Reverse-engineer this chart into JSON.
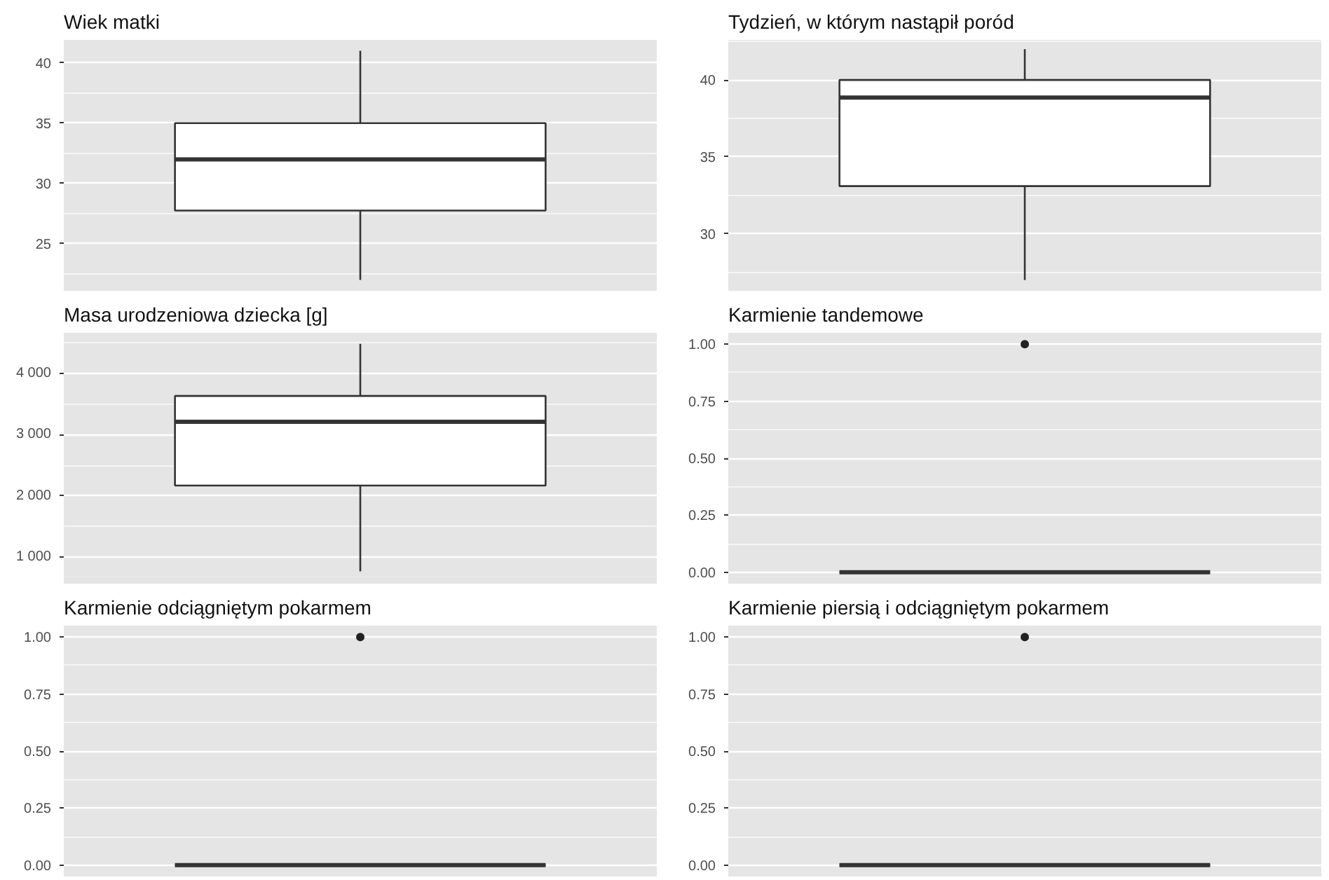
{
  "chart_data": [
    {
      "type": "box",
      "title": "Wiek matki",
      "categories": [
        null
      ],
      "boxes": [
        {
          "low": 22,
          "q1": 27.75,
          "median": 32,
          "q3": 35,
          "high": 41
        }
      ],
      "ylim": [
        21.1,
        41.9
      ],
      "yticks": [
        25,
        30,
        35,
        40
      ],
      "grid": "y",
      "tick_labels": "y"
    },
    {
      "type": "box",
      "title": "Tydzień, w którym nastąpił poród",
      "categories": [
        null
      ],
      "boxes": [
        {
          "low": 27,
          "q1": 33.1,
          "median": 38.85,
          "q3": 40,
          "high": 42
        }
      ],
      "ylim": [
        26.3,
        42.6
      ],
      "yticks": [
        30,
        35,
        40
      ],
      "grid": "y",
      "tick_labels": "y"
    },
    {
      "type": "box",
      "title": "Masa urodzeniowa dziecka [g]",
      "categories": [
        null
      ],
      "boxes": [
        {
          "low": 770,
          "q1": 2170,
          "median": 3210,
          "q3": 3630,
          "high": 4480
        }
      ],
      "ylim": [
        570,
        4660
      ],
      "yticks": [
        {
          "value": 1000,
          "label": "1 000"
        },
        {
          "value": 2000,
          "label": "2 000"
        },
        {
          "value": 3000,
          "label": "3 000"
        },
        {
          "value": 4000,
          "label": "4 000"
        }
      ],
      "grid": "y",
      "tick_labels": "y"
    },
    {
      "type": "box",
      "title": "Karmienie tandemowe",
      "categories": [
        null
      ],
      "boxes": [
        {
          "low": 0,
          "q1": 0,
          "median": 0,
          "q3": 0,
          "high": 0,
          "outliers": [
            1
          ]
        }
      ],
      "ylim": [
        -0.05,
        1.05
      ],
      "yticks": [
        {
          "value": 0,
          "label": "0.00"
        },
        {
          "value": 0.25,
          "label": "0.25"
        },
        {
          "value": 0.5,
          "label": "0.50"
        },
        {
          "value": 0.75,
          "label": "0.75"
        },
        {
          "value": 1,
          "label": "1.00"
        }
      ],
      "grid": "y",
      "tick_labels": "y"
    },
    {
      "type": "box",
      "title": "Karmienie odciągniętym pokarmem",
      "categories": [
        null
      ],
      "boxes": [
        {
          "low": 0,
          "q1": 0,
          "median": 0,
          "q3": 0,
          "high": 0,
          "outliers": [
            1
          ]
        }
      ],
      "ylim": [
        -0.05,
        1.05
      ],
      "yticks": [
        {
          "value": 0,
          "label": "0.00"
        },
        {
          "value": 0.25,
          "label": "0.25"
        },
        {
          "value": 0.5,
          "label": "0.50"
        },
        {
          "value": 0.75,
          "label": "0.75"
        },
        {
          "value": 1,
          "label": "1.00"
        }
      ],
      "grid": "y",
      "tick_labels": "y"
    },
    {
      "type": "box",
      "title": "Karmienie piersią i odciągniętym pokarmem",
      "categories": [
        null
      ],
      "boxes": [
        {
          "low": 0,
          "q1": 0,
          "median": 0,
          "q3": 0,
          "high": 0,
          "outliers": [
            1
          ]
        }
      ],
      "ylim": [
        -0.05,
        1.05
      ],
      "yticks": [
        {
          "value": 0,
          "label": "0.00"
        },
        {
          "value": 0.25,
          "label": "0.25"
        },
        {
          "value": 0.5,
          "label": "0.50"
        },
        {
          "value": 0.75,
          "label": "0.75"
        },
        {
          "value": 1,
          "label": "1.00"
        }
      ],
      "grid": "y",
      "tick_labels": "y"
    }
  ]
}
